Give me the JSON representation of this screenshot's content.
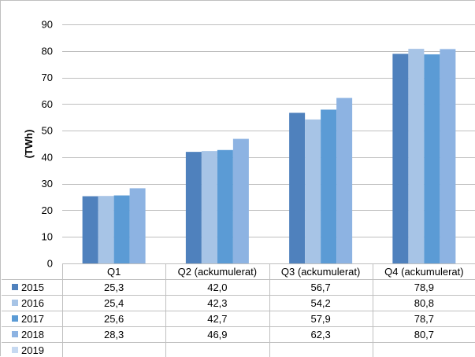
{
  "chart_data": {
    "type": "bar",
    "categories": [
      "Q1",
      "Q2 (ackumulerat)",
      "Q3 (ackumulerat)",
      "Q4 (ackumulerat)"
    ],
    "series": [
      {
        "name": "2015",
        "color": "#4f81bd",
        "values": [
          25.3,
          42.0,
          56.7,
          78.9
        ],
        "labels": [
          "25,3",
          "42,0",
          "56,7",
          "78,9"
        ]
      },
      {
        "name": "2016",
        "color": "#a7c4e6",
        "values": [
          25.4,
          42.3,
          54.2,
          80.8
        ],
        "labels": [
          "25,4",
          "42,3",
          "54,2",
          "80,8"
        ]
      },
      {
        "name": "2017",
        "color": "#5b9bd5",
        "values": [
          25.6,
          42.7,
          57.9,
          78.7
        ],
        "labels": [
          "25,6",
          "42,7",
          "57,9",
          "78,7"
        ]
      },
      {
        "name": "2018",
        "color": "#8db3e2",
        "values": [
          28.3,
          46.9,
          62.3,
          80.7
        ],
        "labels": [
          "28,3",
          "46,9",
          "62,3",
          "80,7"
        ]
      },
      {
        "name": "2019",
        "color": "#c6d9f1",
        "values": [
          null,
          null,
          null,
          null
        ],
        "labels": [
          "",
          "",
          "",
          ""
        ]
      }
    ],
    "ylabel": "(TWh)",
    "ylim": [
      0,
      90
    ],
    "yticks": [
      0,
      10,
      20,
      30,
      40,
      50,
      60,
      70,
      80,
      90
    ],
    "grid": true,
    "legend": "data-table"
  }
}
